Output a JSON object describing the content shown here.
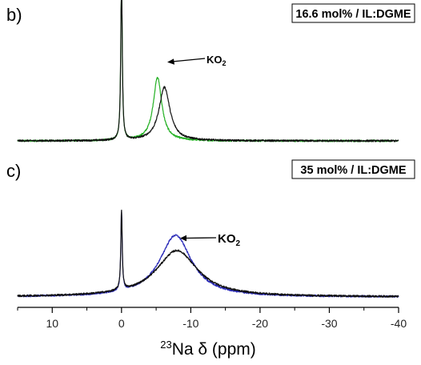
{
  "chart_data": {
    "type": "line",
    "xlabel_sup": "23",
    "xlabel": "Na δ (ppm)",
    "xlim": [
      15,
      -40
    ],
    "x_ticks": [
      "10",
      "0",
      "-10",
      "-20",
      "-30",
      "-40"
    ],
    "x_tick_values": [
      10,
      0,
      -10,
      -20,
      -30,
      -40
    ],
    "reversed_x": true,
    "grid": false,
    "panels": [
      {
        "letter": "b)",
        "label": "16.6 mol% / IL:DGME",
        "annotation": {
          "text": "KO",
          "sub": "2",
          "x": -6.1
        },
        "series": [
          {
            "color": "#22b022",
            "peaks": [
              {
                "x": 0.0,
                "h": 2.2,
                "w": 0.12
              },
              {
                "x": -5.2,
                "h": 0.79,
                "w": 0.75
              }
            ]
          },
          {
            "color": "#111111",
            "peaks": [
              {
                "x": 0.0,
                "h": 2.2,
                "w": 0.12
              },
              {
                "x": -6.2,
                "h": 0.67,
                "w": 0.95
              }
            ]
          }
        ]
      },
      {
        "letter": "c)",
        "label": "35 mol% / IL:DGME",
        "annotation": {
          "text": "KO",
          "sub": "2",
          "x": -8.0
        },
        "series": [
          {
            "color": "#2a2ab8",
            "peaks": [
              {
                "x": 0.0,
                "h": 1.0,
                "w": 0.12
              },
              {
                "x": -7.8,
                "h": 0.77,
                "w": 2.8
              }
            ]
          },
          {
            "color": "#111111",
            "peaks": [
              {
                "x": 0.0,
                "h": 1.0,
                "w": 0.12
              },
              {
                "x": -8.0,
                "h": 0.58,
                "w": 3.6
              }
            ]
          }
        ]
      }
    ]
  }
}
